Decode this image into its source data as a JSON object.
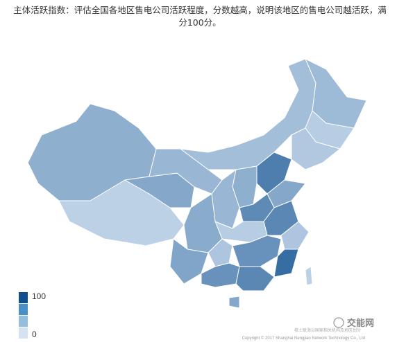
{
  "title": "主体活跃指数：评估全国各地区售电公司活跃程度，分数越高，说明该地区的售电公司越活跃，满分100分。",
  "legend": {
    "max": 100,
    "min": 0,
    "colors": [
      "#d4e3f2",
      "#93bedd",
      "#4a8fc6",
      "#0f4f8e"
    ]
  },
  "map": {
    "values": [
      35,
      12,
      40,
      30,
      25,
      28,
      15,
      18,
      68,
      35,
      40,
      30,
      60,
      62,
      15,
      38,
      20,
      42,
      20,
      55,
      80,
      55,
      62,
      40,
      12
    ]
  },
  "watermark": {
    "brand": "交能网",
    "note": "核士联海以国家相关机构及地区划分",
    "copyright": "Copyright © 2017 Shanghai Nengjiao Network Technology Co., Ltd"
  }
}
